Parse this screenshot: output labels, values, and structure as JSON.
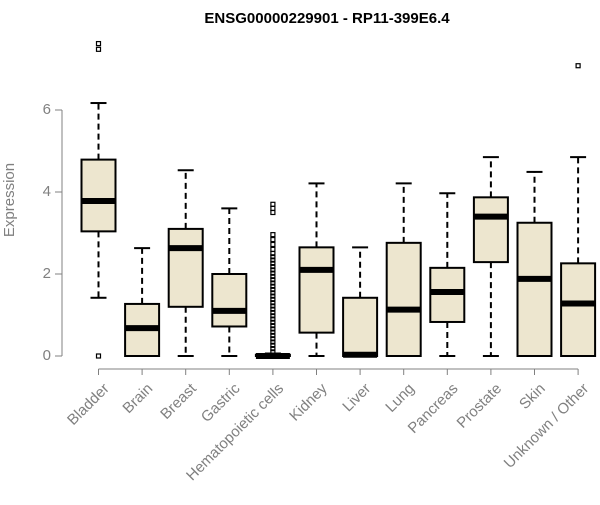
{
  "chart_data": {
    "type": "boxplot",
    "title": "ENSG00000229901 - RP11-399E6.4",
    "ylabel": "Expression",
    "xlabel": "",
    "ylim": [
      0,
      8
    ],
    "yticks": [
      0,
      2,
      4,
      6
    ],
    "categories": [
      "Bladder",
      "Brain",
      "Breast",
      "Gastric",
      "Hematopoietic cells",
      "Kidney",
      "Liver",
      "Lung",
      "Pancreas",
      "Prostate",
      "Skin",
      "Unknown / Other"
    ],
    "boxes": [
      {
        "category": "Bladder",
        "whisker_low": 1.42,
        "q1": 3.04,
        "median": 3.78,
        "q3": 4.79,
        "whisker_high": 6.17,
        "outliers": [
          0.0,
          7.48,
          7.62
        ]
      },
      {
        "category": "Brain",
        "whisker_low": 0.0,
        "q1": 0.0,
        "median": 0.68,
        "q3": 1.27,
        "whisker_high": 2.63,
        "outliers": []
      },
      {
        "category": "Breast",
        "whisker_low": 0.0,
        "q1": 1.2,
        "median": 2.63,
        "q3": 3.1,
        "whisker_high": 4.53,
        "outliers": []
      },
      {
        "category": "Gastric",
        "whisker_low": 0.0,
        "q1": 0.72,
        "median": 1.1,
        "q3": 2.0,
        "whisker_high": 3.6,
        "outliers": []
      },
      {
        "category": "Hematopoietic cells",
        "whisker_low": 0.0,
        "q1": 0.0,
        "median": 0.0,
        "q3": 0.03,
        "whisker_high": 0.06,
        "outliers": [
          0.1,
          0.18,
          0.26,
          0.34,
          0.42,
          0.5,
          0.58,
          0.66,
          0.74,
          0.82,
          0.9,
          0.98,
          1.06,
          1.14,
          1.22,
          1.3,
          1.38,
          1.46,
          1.54,
          1.62,
          1.7,
          1.78,
          1.86,
          1.94,
          2.02,
          2.1,
          2.18,
          2.26,
          2.34,
          2.42,
          2.5,
          2.6,
          2.72,
          2.84,
          2.96,
          3.5,
          3.6,
          3.7
        ]
      },
      {
        "category": "Kidney",
        "whisker_low": 0.0,
        "q1": 0.57,
        "median": 2.1,
        "q3": 2.65,
        "whisker_high": 4.21,
        "outliers": []
      },
      {
        "category": "Liver",
        "whisker_low": 0.0,
        "q1": 0.0,
        "median": 0.03,
        "q3": 1.42,
        "whisker_high": 2.65,
        "outliers": []
      },
      {
        "category": "Lung",
        "whisker_low": 0.0,
        "q1": 0.0,
        "median": 1.13,
        "q3": 2.76,
        "whisker_high": 4.21,
        "outliers": []
      },
      {
        "category": "Pancreas",
        "whisker_low": 0.0,
        "q1": 0.83,
        "median": 1.56,
        "q3": 2.15,
        "whisker_high": 3.97,
        "outliers": []
      },
      {
        "category": "Prostate",
        "whisker_low": 0.0,
        "q1": 2.29,
        "median": 3.4,
        "q3": 3.87,
        "whisker_high": 4.85,
        "outliers": []
      },
      {
        "category": "Skin",
        "whisker_low": 0.0,
        "q1": 0.0,
        "median": 1.88,
        "q3": 3.25,
        "whisker_high": 4.49,
        "outliers": []
      },
      {
        "category": "Unknown / Other",
        "whisker_low": 0.0,
        "q1": 0.0,
        "median": 1.28,
        "q3": 2.26,
        "whisker_high": 4.85,
        "outliers": [
          7.08
        ]
      }
    ],
    "grid": false,
    "legend": "none",
    "colors": {
      "box_fill": "#ede6cf",
      "box_stroke": "#000000",
      "axis": "#808080",
      "tick_label": "#808080",
      "title": "#000000"
    }
  }
}
